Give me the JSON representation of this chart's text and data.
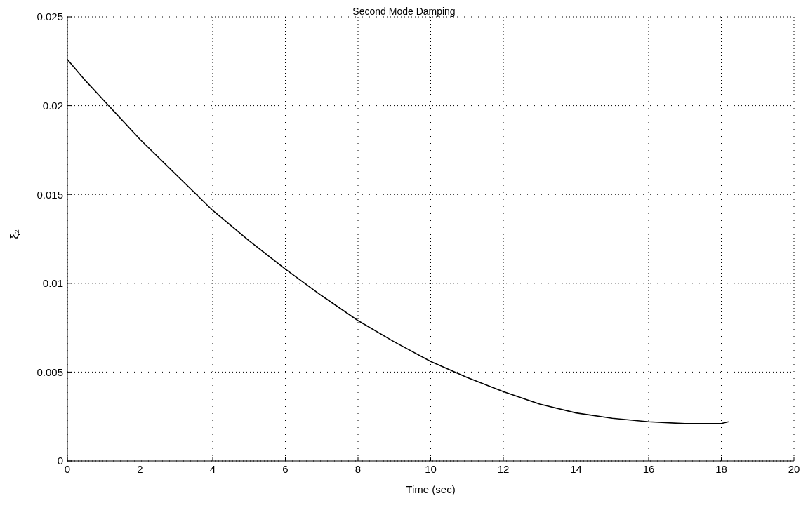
{
  "chart_data": {
    "type": "line",
    "title": "Second Mode Damping",
    "xlabel": "Time (sec)",
    "ylabel": "ξ₂",
    "x": [
      0,
      0.5,
      1,
      1.5,
      2,
      3,
      4,
      5,
      6,
      7,
      8,
      9,
      10,
      11,
      12,
      13,
      14,
      15,
      16,
      17,
      18,
      18.2
    ],
    "series": [
      {
        "color": "#000000",
        "values": [
          0.0226,
          0.0214,
          0.0203,
          0.0192,
          0.0181,
          0.0161,
          0.0141,
          0.0124,
          0.0108,
          0.0093,
          0.0079,
          0.0067,
          0.0056,
          0.0047,
          0.0039,
          0.0032,
          0.0027,
          0.0024,
          0.0022,
          0.0021,
          0.0021,
          0.0022
        ]
      }
    ],
    "xlim": [
      0,
      20
    ],
    "xticks": [
      0,
      2,
      4,
      6,
      8,
      10,
      12,
      14,
      16,
      18,
      20
    ],
    "ylim": [
      0,
      0.025
    ],
    "yticks": [
      0,
      0.005,
      0.01,
      0.015,
      0.02,
      0.025
    ],
    "grid": true,
    "marker": "none",
    "line_style": "solid"
  }
}
